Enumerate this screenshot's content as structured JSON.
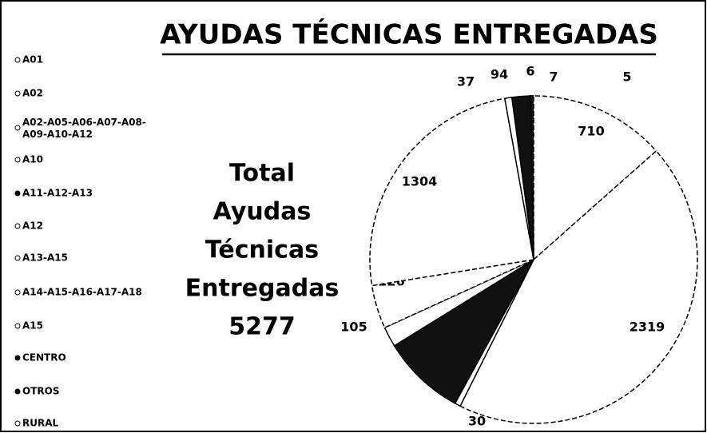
{
  "chart_data": {
    "type": "pie",
    "title": "AYUDAS TÉCNICAS ENTREGADAS",
    "annotation": [
      "Total",
      "Ayudas",
      "Técnicas",
      "Entregadas",
      "5277"
    ],
    "categories": [
      "A01",
      "A02",
      "A02-A05-A06-A07-A08-A09-A10-A12",
      "A10",
      "A11-A12-A13",
      "A12",
      "A13-A15",
      "A14-A15-A16-A17-A18",
      "A15",
      "CENTRO",
      "OTROS",
      "RURAL"
    ],
    "values": [
      5,
      710,
      2319,
      30,
      434,
      105,
      226,
      1304,
      37,
      94,
      6,
      7
    ],
    "value_labels": [
      "5",
      "710",
      "2319",
      "30",
      null,
      "105",
      "226",
      "1304",
      "37",
      "94",
      "6",
      "7"
    ],
    "colors": [
      "#ffffff",
      "#ffffff",
      "#ffffff",
      "#ffffff",
      "#111111",
      "#ffffff",
      "#ffffff",
      "#ffffff",
      "#ffffff",
      "#111111",
      "#111111",
      "#ffffff"
    ],
    "legend": "left"
  }
}
